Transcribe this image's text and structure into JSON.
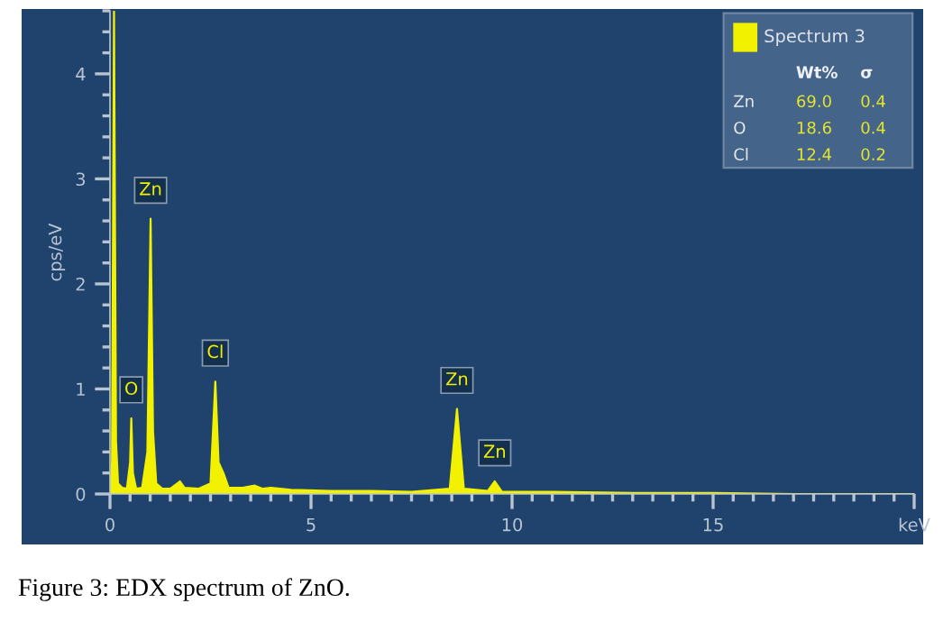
{
  "chart_data": {
    "type": "area",
    "ylabel": "cps/eV",
    "x": [
      0,
      0.05,
      0.1,
      0.15,
      0.2,
      0.3,
      0.42,
      0.5,
      0.53,
      0.57,
      0.65,
      0.8,
      0.93,
      1.01,
      1.07,
      1.15,
      1.3,
      1.5,
      1.74,
      1.85,
      2.2,
      2.5,
      2.62,
      2.7,
      2.82,
      2.95,
      3.3,
      3.6,
      3.8,
      4.0,
      4.5,
      5.5,
      6.5,
      7.5,
      8.45,
      8.63,
      8.8,
      9.4,
      9.57,
      9.75,
      11,
      13,
      15,
      17,
      20
    ],
    "series": [
      {
        "name": "Spectrum 3",
        "color": "#f2f200",
        "values": [
          0,
          0.3,
          4.6,
          0.5,
          0.1,
          0.06,
          0.05,
          0.3,
          0.72,
          0.2,
          0.05,
          0.06,
          0.4,
          2.62,
          0.6,
          0.1,
          0.05,
          0.05,
          0.12,
          0.06,
          0.05,
          0.1,
          1.07,
          0.3,
          0.2,
          0.06,
          0.06,
          0.08,
          0.05,
          0.06,
          0.04,
          0.03,
          0.03,
          0.02,
          0.05,
          0.81,
          0.05,
          0.03,
          0.12,
          0.02,
          0.02,
          0.01,
          0.01,
          0,
          0
        ]
      }
    ],
    "xlim": [
      0,
      20
    ],
    "ylim": [
      0,
      4.6
    ],
    "xticks": [
      0,
      5,
      10,
      15,
      {
        "value": 20,
        "label": "keV"
      }
    ],
    "yticks": [
      0,
      1,
      2,
      3,
      4
    ],
    "legend": "top right",
    "grid": false,
    "annotations": [
      {
        "text": "O",
        "x": 0.53,
        "y": 0.72
      },
      {
        "text": "Zn",
        "x": 1.01,
        "y": 2.62
      },
      {
        "text": "Cl",
        "x": 2.62,
        "y": 1.07
      },
      {
        "text": "Zn",
        "x": 8.63,
        "y": 0.81
      },
      {
        "text": "Zn",
        "x": 9.57,
        "y": 0.12
      },
      "Wt%",
      "σ",
      "Zn",
      "69.0",
      "0.4",
      "O",
      "18.6",
      "0.4",
      "Cl",
      "12.4",
      "0.2",
      "Figure 3: EDX spectrum of ZnO."
    ]
  }
}
